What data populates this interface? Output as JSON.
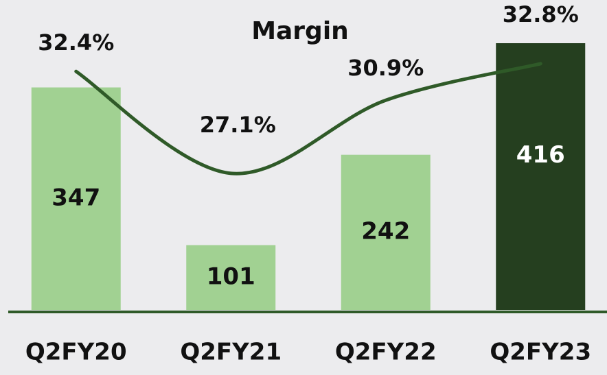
{
  "chart_data": {
    "type": "bar",
    "title": "Margin",
    "categories": [
      "Q2FY20",
      "Q2FY21",
      "Q2FY22",
      "Q2FY23"
    ],
    "series": [
      {
        "type": "bar",
        "values": [
          347,
          101,
          242,
          416
        ],
        "colors": [
          "#a1d192",
          "#a1d192",
          "#a1d192",
          "#253f1f"
        ],
        "label_colors": [
          "#111111",
          "#111111",
          "#111111",
          "#ffffff"
        ]
      },
      {
        "type": "line",
        "axis": "y2",
        "values": [
          32.4,
          27.1,
          30.9,
          32.8
        ],
        "value_labels": [
          "32.4%",
          "27.1%",
          "30.9%",
          "32.8%"
        ],
        "color": "#2f5a28"
      }
    ],
    "ylim": [
      0,
      462
    ],
    "y2lim": [
      20,
      35.4
    ]
  }
}
